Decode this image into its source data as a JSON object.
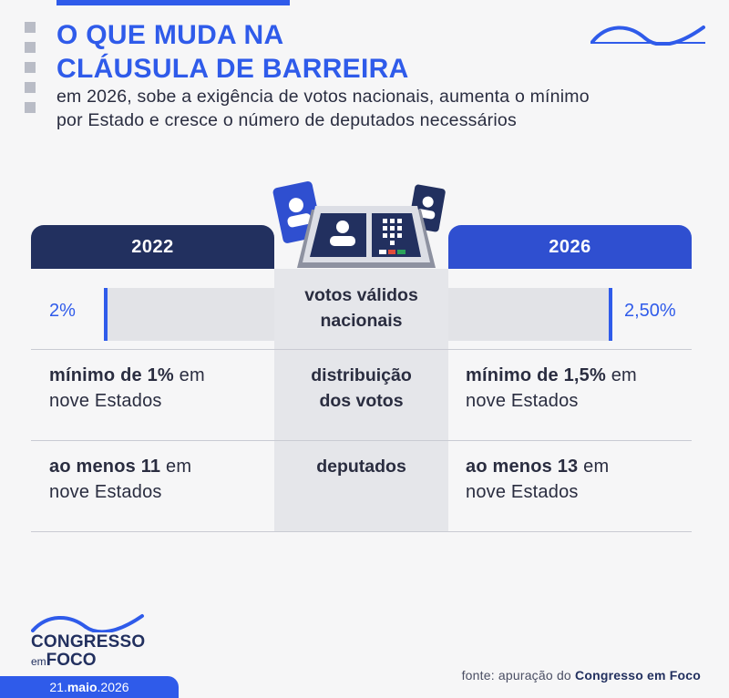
{
  "header": {
    "title_line1": "O QUE MUDA NA",
    "title_line2": "CLÁUSULA DE BARREIRA",
    "subtitle_line1": "em 2026, sobe a exigência de votos nacionais, aumenta o mínimo",
    "subtitle_line2": "por Estado e cresce o número de deputados necessários"
  },
  "table": {
    "col_left_year": "2022",
    "col_right_year": "2026",
    "rows": [
      {
        "label_line1": "votos válidos",
        "label_line2": "nacionais",
        "left_value": "2%",
        "right_value": "2,50%"
      },
      {
        "label_line1": "distribuição",
        "label_line2": "dos votos",
        "left_bold": "mínimo de 1%",
        "left_rest1": " em",
        "left_rest2": "nove Estados",
        "right_bold": "mínimo de 1,5%",
        "right_rest1": " em",
        "right_rest2": "nove Estados"
      },
      {
        "label_line1": "deputados",
        "left_bold": "ao menos 11",
        "left_rest1": " em",
        "left_rest2": "nove Estados",
        "right_bold": "ao menos 13",
        "right_rest1": " em",
        "right_rest2": "nove Estados"
      }
    ]
  },
  "footer": {
    "brand_name": "CONGRESSO",
    "brand_em": "em",
    "brand_foco": "FOCO",
    "date_day": "21.",
    "date_month": "maio",
    "date_year": ".2026",
    "source_prefix": "fonte: apuração do ",
    "source_name": "Congresso em Foco"
  },
  "colors": {
    "accent_blue": "#2f5bea",
    "navy": "#22305f",
    "royal": "#2f4fd0",
    "background": "#f6f6f7"
  },
  "icons": [
    "logo-wave-icon",
    "voting-machine-icon",
    "candidate-card-icon",
    "decorative-squares-icon"
  ]
}
